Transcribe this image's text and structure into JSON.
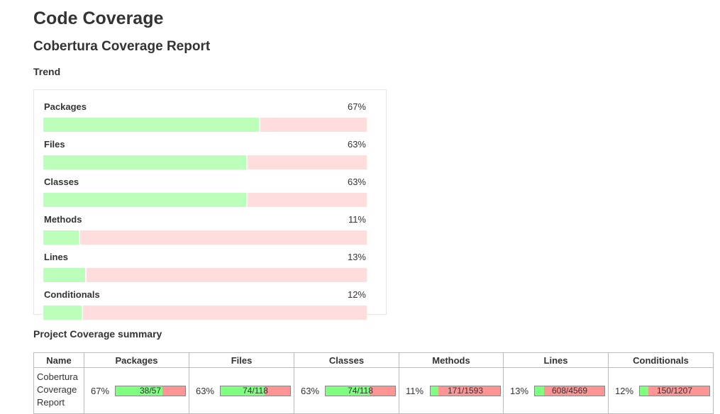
{
  "header": {
    "title": "Code Coverage",
    "subtitle": "Cobertura Coverage Report",
    "trend_heading": "Trend",
    "summary_heading": "Project Coverage summary"
  },
  "trend": [
    {
      "label": "Packages",
      "pct": "67%",
      "value": 67
    },
    {
      "label": "Files",
      "pct": "63%",
      "value": 63
    },
    {
      "label": "Classes",
      "pct": "63%",
      "value": 63
    },
    {
      "label": "Methods",
      "pct": "11%",
      "value": 11
    },
    {
      "label": "Lines",
      "pct": "13%",
      "value": 13
    },
    {
      "label": "Conditionals",
      "pct": "12%",
      "value": 12
    }
  ],
  "summary": {
    "headers": [
      "Name",
      "Packages",
      "Files",
      "Classes",
      "Methods",
      "Lines",
      "Conditionals"
    ],
    "row": {
      "name_lines": [
        "Cobertura",
        "Coverage",
        "Report"
      ],
      "cells": [
        {
          "pct": "67%",
          "ratio": "38/57",
          "value": 67
        },
        {
          "pct": "63%",
          "ratio": "74/118",
          "value": 63
        },
        {
          "pct": "63%",
          "ratio": "74/118",
          "value": 63
        },
        {
          "pct": "11%",
          "ratio": "171/1593",
          "value": 11
        },
        {
          "pct": "13%",
          "ratio": "608/4569",
          "value": 13
        },
        {
          "pct": "12%",
          "ratio": "150/1207",
          "value": 12
        }
      ]
    }
  },
  "colors": {
    "trend_covered": "#bbffbb",
    "trend_uncovered": "#ffdddd",
    "bar_covered": "#7fff7f",
    "bar_uncovered": "#ff9494"
  }
}
